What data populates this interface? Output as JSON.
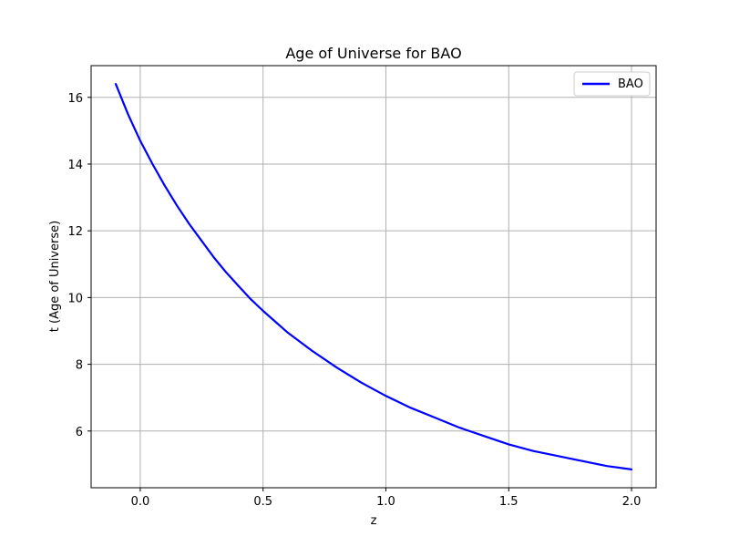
{
  "chart_data": {
    "type": "line",
    "title": "Age of Universe for BAO",
    "xlabel": "z",
    "ylabel": "t (Age of Universe)",
    "xlim": [
      -0.2,
      2.1
    ],
    "ylim": [
      4.3,
      16.95
    ],
    "xticks": [
      0.0,
      0.5,
      1.0,
      1.5,
      2.0
    ],
    "xtick_labels": [
      "0.0",
      "0.5",
      "1.0",
      "1.5",
      "2.0"
    ],
    "yticks": [
      6,
      8,
      10,
      12,
      14,
      16
    ],
    "ytick_labels": [
      "6",
      "8",
      "10",
      "12",
      "14",
      "16"
    ],
    "grid": true,
    "legend_position": "top-right",
    "series": [
      {
        "name": "BAO",
        "color": "#0000ff",
        "x": [
          -0.1,
          -0.05,
          0.0,
          0.05,
          0.1,
          0.15,
          0.2,
          0.25,
          0.3,
          0.35,
          0.4,
          0.45,
          0.5,
          0.6,
          0.7,
          0.8,
          0.9,
          1.0,
          1.1,
          1.2,
          1.3,
          1.4,
          1.5,
          1.6,
          1.7,
          1.8,
          1.9,
          2.0
        ],
        "y": [
          16.4,
          15.5,
          14.7,
          14.0,
          13.35,
          12.75,
          12.2,
          11.7,
          11.2,
          10.75,
          10.35,
          9.95,
          9.6,
          8.95,
          8.4,
          7.9,
          7.45,
          7.05,
          6.7,
          6.4,
          6.1,
          5.85,
          5.6,
          5.4,
          5.25,
          5.1,
          4.95,
          4.85
        ]
      }
    ]
  }
}
